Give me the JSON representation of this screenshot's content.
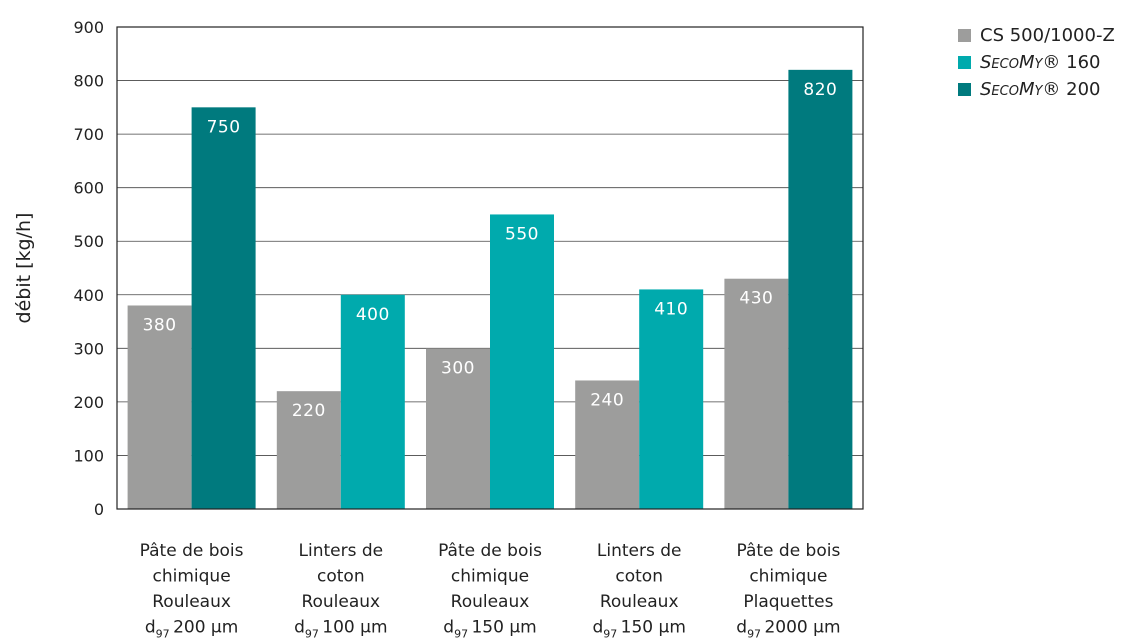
{
  "chart_data": {
    "type": "bar",
    "ylabel": "débit [kg/h]",
    "ylim": [
      0,
      900
    ],
    "yticks": [
      0,
      100,
      200,
      300,
      400,
      500,
      600,
      700,
      800,
      900
    ],
    "grid": true,
    "legend_position": "top-right",
    "categories": [
      {
        "lines": [
          "Pâte de bois",
          "chimique",
          "Rouleaux"
        ],
        "size_label": "200 µm"
      },
      {
        "lines": [
          "Linters de",
          "coton",
          "Rouleaux"
        ],
        "size_label": "100 µm"
      },
      {
        "lines": [
          "Pâte de bois",
          "chimique",
          "Rouleaux"
        ],
        "size_label": "150 µm"
      },
      {
        "lines": [
          "Linters de",
          "coton",
          "Rouleaux"
        ],
        "size_label": "150 µm"
      },
      {
        "lines": [
          "Pâte de bois",
          "chimique",
          "Plaquettes"
        ],
        "size_label": "2000 µm"
      }
    ],
    "size_symbol": "d",
    "size_subscript": "97",
    "series": [
      {
        "name": "CS 500/1000-Z",
        "color": "#9d9d9c",
        "values": [
          380,
          220,
          300,
          240,
          430
        ]
      },
      {
        "name": "SecoMy® 160",
        "name_main": "SecoMy",
        "name_suffix": "® 160",
        "color": "#00aaad",
        "values": [
          null,
          400,
          550,
          410,
          null
        ]
      },
      {
        "name": "SecoMy® 200",
        "name_main": "SecoMy",
        "name_suffix": "® 200",
        "color": "#007a7e",
        "values": [
          750,
          null,
          null,
          null,
          820
        ]
      }
    ]
  }
}
